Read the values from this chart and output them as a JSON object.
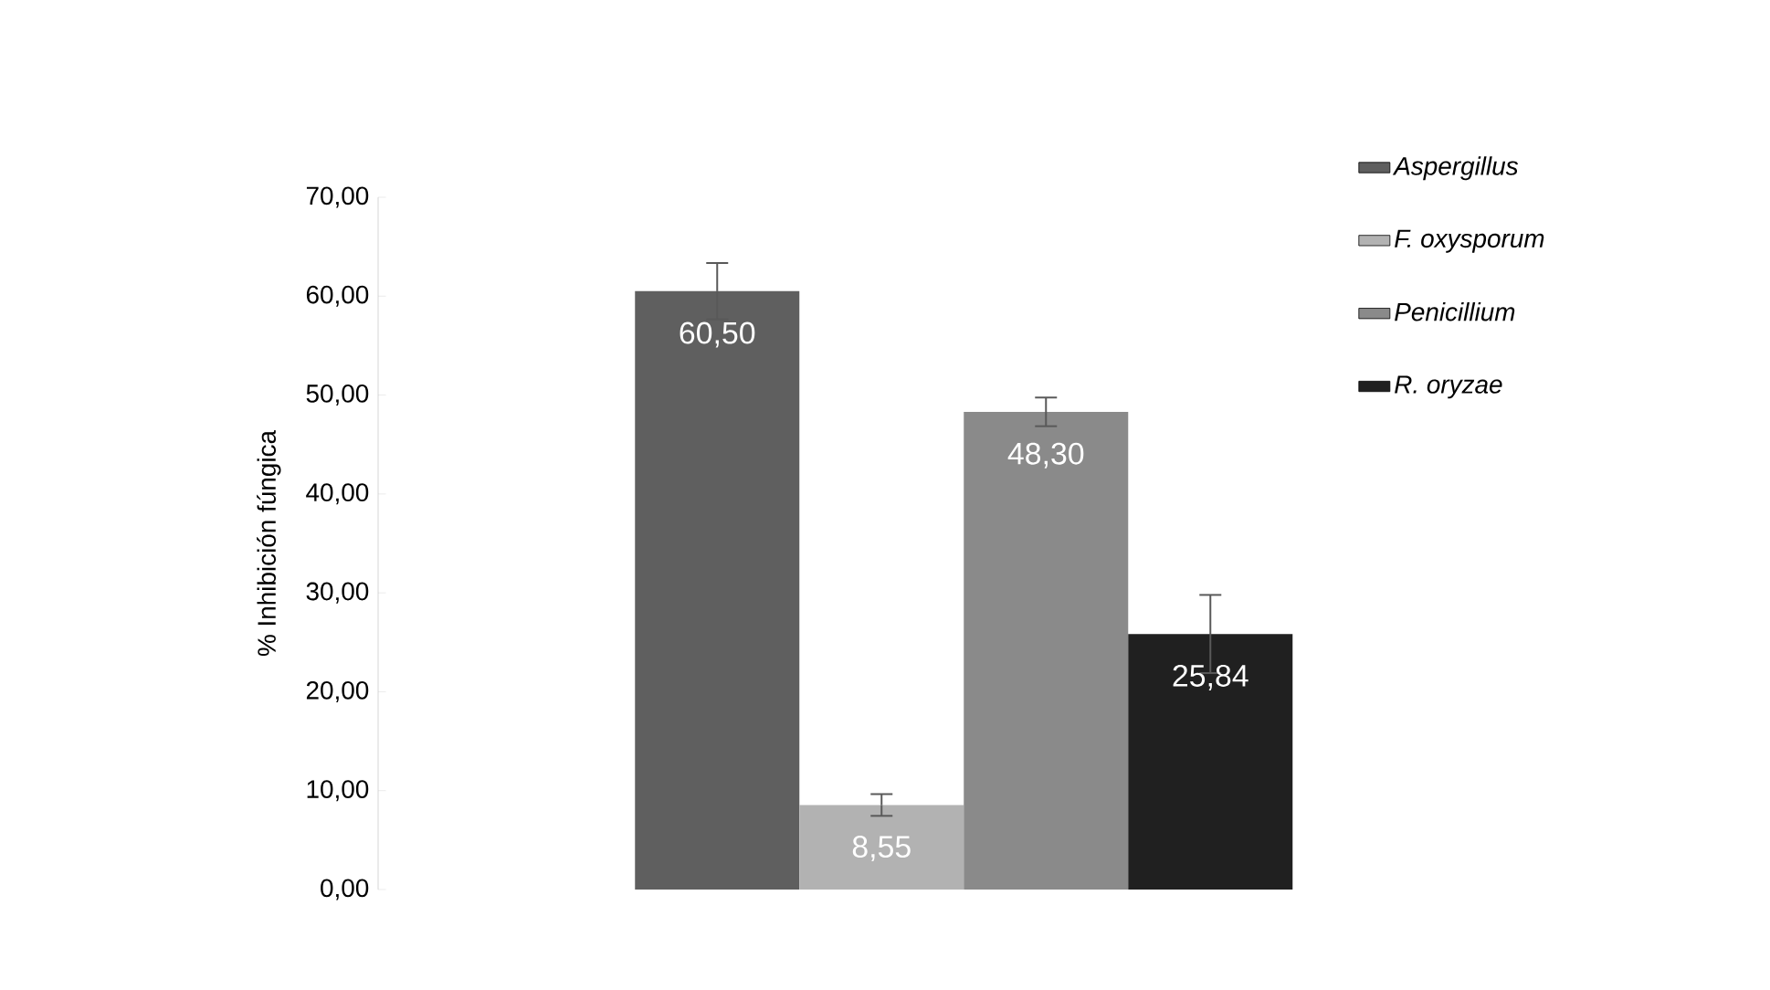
{
  "chart_data": {
    "type": "bar",
    "ylabel": "% Inhibición fúngica",
    "categories": [
      null
    ],
    "series": [
      {
        "name": "Aspergillus",
        "color": "#5f5f5f",
        "values": [
          60.5
        ],
        "errors": [
          2.85
        ],
        "value_labels": [
          "60,50"
        ]
      },
      {
        "name": "F. oxysporum",
        "color": "#b2b2b2",
        "values": [
          8.55
        ],
        "errors": [
          1.1
        ],
        "value_labels": [
          "8,55"
        ]
      },
      {
        "name": "Penicillium",
        "color": "#8a8a8a",
        "values": [
          48.3
        ],
        "errors": [
          1.45
        ],
        "value_labels": [
          "48,30"
        ]
      },
      {
        "name": "R. oryzae",
        "color": "#202020",
        "values": [
          25.84
        ],
        "errors": [
          3.95
        ],
        "value_labels": [
          "25,84"
        ]
      }
    ],
    "ylim": [
      0,
      70
    ],
    "yticks": [
      {
        "value": 0,
        "label": "0,00"
      },
      {
        "value": 10,
        "label": "10,00"
      },
      {
        "value": 20,
        "label": "20,00"
      },
      {
        "value": 30,
        "label": "30,00"
      },
      {
        "value": 40,
        "label": "40,00"
      },
      {
        "value": 50,
        "label": "50,00"
      },
      {
        "value": 60,
        "label": "60,00"
      },
      {
        "value": 70,
        "label": "70,00"
      }
    ],
    "grid": false,
    "legend": "right"
  }
}
